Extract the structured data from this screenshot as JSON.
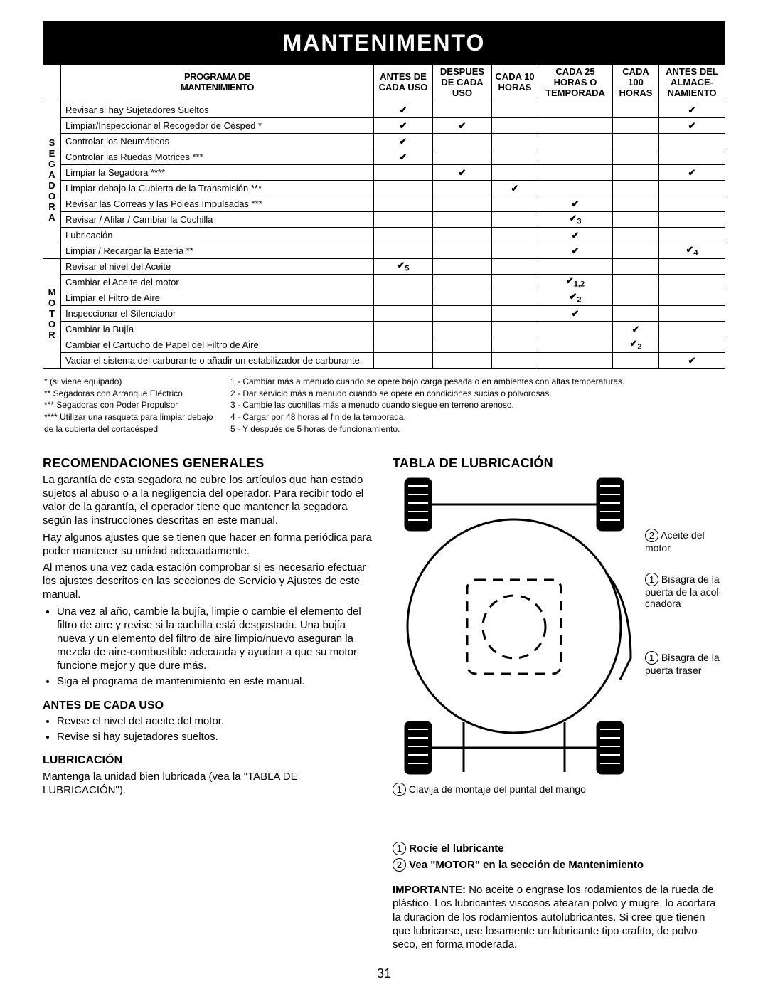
{
  "banner": "MANTENIMENTO",
  "programTitle1": "PROGRAMA DE",
  "programTitle2": "MANTENIMIENTO",
  "sideLabel1": "SEGADORA",
  "sideLabel2": "MOTOR",
  "headers": [
    "ANTES DE CADA USO",
    "DESPUES DE CADA USO",
    "CADA 10 HORAS",
    "CADA 25 HORAS O TEMPORADA",
    "CADA 100 HORAS",
    "ANTES DEL ALMACE- NAMIENTO"
  ],
  "rows": [
    {
      "t": "Revisar si hay Sujetadores Sueltos",
      "c": [
        "✔",
        "",
        "",
        "",
        "",
        "✔"
      ]
    },
    {
      "t": "Limpiar/Inspeccionar el Recogedor de Césped *",
      "c": [
        "✔",
        "✔",
        "",
        "",
        "",
        "✔"
      ]
    },
    {
      "t": "Controlar los Neumáticos",
      "c": [
        "✔",
        "",
        "",
        "",
        "",
        ""
      ]
    },
    {
      "t": "Controlar las Ruedas Motrices ***",
      "c": [
        "✔",
        "",
        "",
        "",
        "",
        ""
      ]
    },
    {
      "t": "Limpiar la Segadora ****",
      "c": [
        "",
        "✔",
        "",
        "",
        "",
        "✔"
      ]
    },
    {
      "t": "Limpiar debajo la Cubierta de la Transmisión ***",
      "c": [
        "",
        "",
        "✔",
        "",
        "",
        ""
      ]
    },
    {
      "t": "Revisar las Correas y las Poleas Impulsadas ***",
      "c": [
        "",
        "",
        "",
        "✔",
        "",
        ""
      ]
    },
    {
      "t": "Revisar / Afilar / Cambiar la Cuchilla",
      "c": [
        "",
        "",
        "",
        "✔",
        "",
        ""
      ],
      "s": [
        "",
        "",
        "",
        "3",
        "",
        ""
      ]
    },
    {
      "t": "Lubricación",
      "c": [
        "",
        "",
        "",
        "✔",
        "",
        ""
      ]
    },
    {
      "t": "Limpiar / Recargar la Batería **",
      "c": [
        "",
        "",
        "",
        "✔",
        "",
        "✔"
      ],
      "s": [
        "",
        "",
        "",
        "",
        "",
        "4"
      ]
    },
    {
      "t": "Revisar el nivel del Aceite",
      "c": [
        "✔",
        "",
        "",
        "",
        "",
        ""
      ],
      "s": [
        "5",
        "",
        "",
        "",
        "",
        ""
      ]
    },
    {
      "t": "Cambiar el Aceite del motor",
      "c": [
        "",
        "",
        "",
        "✔",
        "",
        ""
      ],
      "s": [
        "",
        "",
        "",
        "1,2",
        "",
        ""
      ]
    },
    {
      "t": "Limpiar el Filtro de Aire",
      "c": [
        "",
        "",
        "",
        "✔",
        "",
        ""
      ],
      "s": [
        "",
        "",
        "",
        "2",
        "",
        ""
      ]
    },
    {
      "t": "Inspeccionar el Silenciador",
      "c": [
        "",
        "",
        "",
        "✔",
        "",
        ""
      ]
    },
    {
      "t": "Cambiar la Bujía",
      "c": [
        "",
        "",
        "",
        "",
        "✔",
        ""
      ]
    },
    {
      "t": "Cambiar el Cartucho de Papel del Filtro de Aire",
      "c": [
        "",
        "",
        "",
        "",
        "✔",
        ""
      ],
      "s": [
        "",
        "",
        "",
        "",
        "2",
        ""
      ]
    },
    {
      "t": "Vaciar el sistema del carburante o añadir un estabilizador de carburante.",
      "c": [
        "",
        "",
        "",
        "",
        "",
        "✔"
      ]
    }
  ],
  "notesL": [
    "* (si viene equipado)",
    "** Segadoras con Arranque Eléctrico",
    "*** Segadoras con Poder Propulsor",
    "**** Utilizar una rasqueta para limpiar debajo de la cubierta del cortacésped"
  ],
  "notesR": [
    "1 - Cambiar más a menudo cuando se opere bajo carga pesada o en ambientes con altas temperaturas.",
    "2 - Dar servicio más a menudo cuando se opere en condiciones sucias o polvorosas.",
    "3 - Cambie las cuchillas más a menudo cuando siegue en terreno arenoso.",
    "4 - Cargar por 48 horas al fin de la temporada.",
    "5 - Y después de 5 horas de funcionamiento."
  ],
  "h_recom": "RECOMENDACIONES GENERALES",
  "p1": "La garantía de esta segadora no cubre los artículos que han estado sujetos al abuso o a la negligencia del operador. Para recibir todo el valor de la garantía, el operador tiene que mantener la segadora según las instrucciones descritas en este manual.",
  "p2": "Hay algunos ajustes que se tienen que hacer en forma periódica para poder mantener su unidad adecuadamente.",
  "p3": "Al menos una vez cada estación comprobar si es necesario efectuar los ajustes descritos en las secciones de Servicio y Ajustes de este manual.",
  "b1": "Una vez al año, cambie la bujía, limpie o cambie el elemento del filtro de aire y revise si la cuchilla está desgastada. Una bujía nueva y un elemento del filtro de aire limpio/nuevo aseguran la mezcla de aire-combustible adecuada y ayudan a que su motor funcione mejor y que dure más.",
  "b2": "Siga el programa de mantenimiento en este manual.",
  "h_antes": "ANTES DE CADA USO",
  "a1": "Revise el nivel del aceite del motor.",
  "a2": "Revise si hay sujetadores sueltos.",
  "h_lub": "LUBRICACIÓN",
  "lub_p": "Mantenga la unidad bien lubricada (vea la \"TABLA DE LUBRICACIÓN\").",
  "h_tabla": "TABLA DE LUBRICACIÓN",
  "lbl_aceite": "Aceite del motor",
  "lbl_bis1": "Bisagra de la puerta de la acol- chadora",
  "lbl_bis2": "Bisagra de la puerta traser",
  "lbl_clav": "Clavija de montaje del puntal del mango",
  "leg1": "Rocíe el lubricante",
  "leg2": "Vea \"MOTOR\" en la sección de Mantenimiento",
  "imp": "IMPORTANTE:",
  "imp_p": " No aceite o engrase los rodamientos de la rueda de plástico. Los lubricantes viscosos atearan polvo y mugre, lo acortara la duracion de los rodamientos autolubricantes. Si cree que tienen que lubricarse, use losamente un lubricante tipo crafito, de polvo seco, en forma moderada.",
  "pageNum": "31",
  "colors": {
    "bg": "#ffffff",
    "ink": "#000000"
  }
}
